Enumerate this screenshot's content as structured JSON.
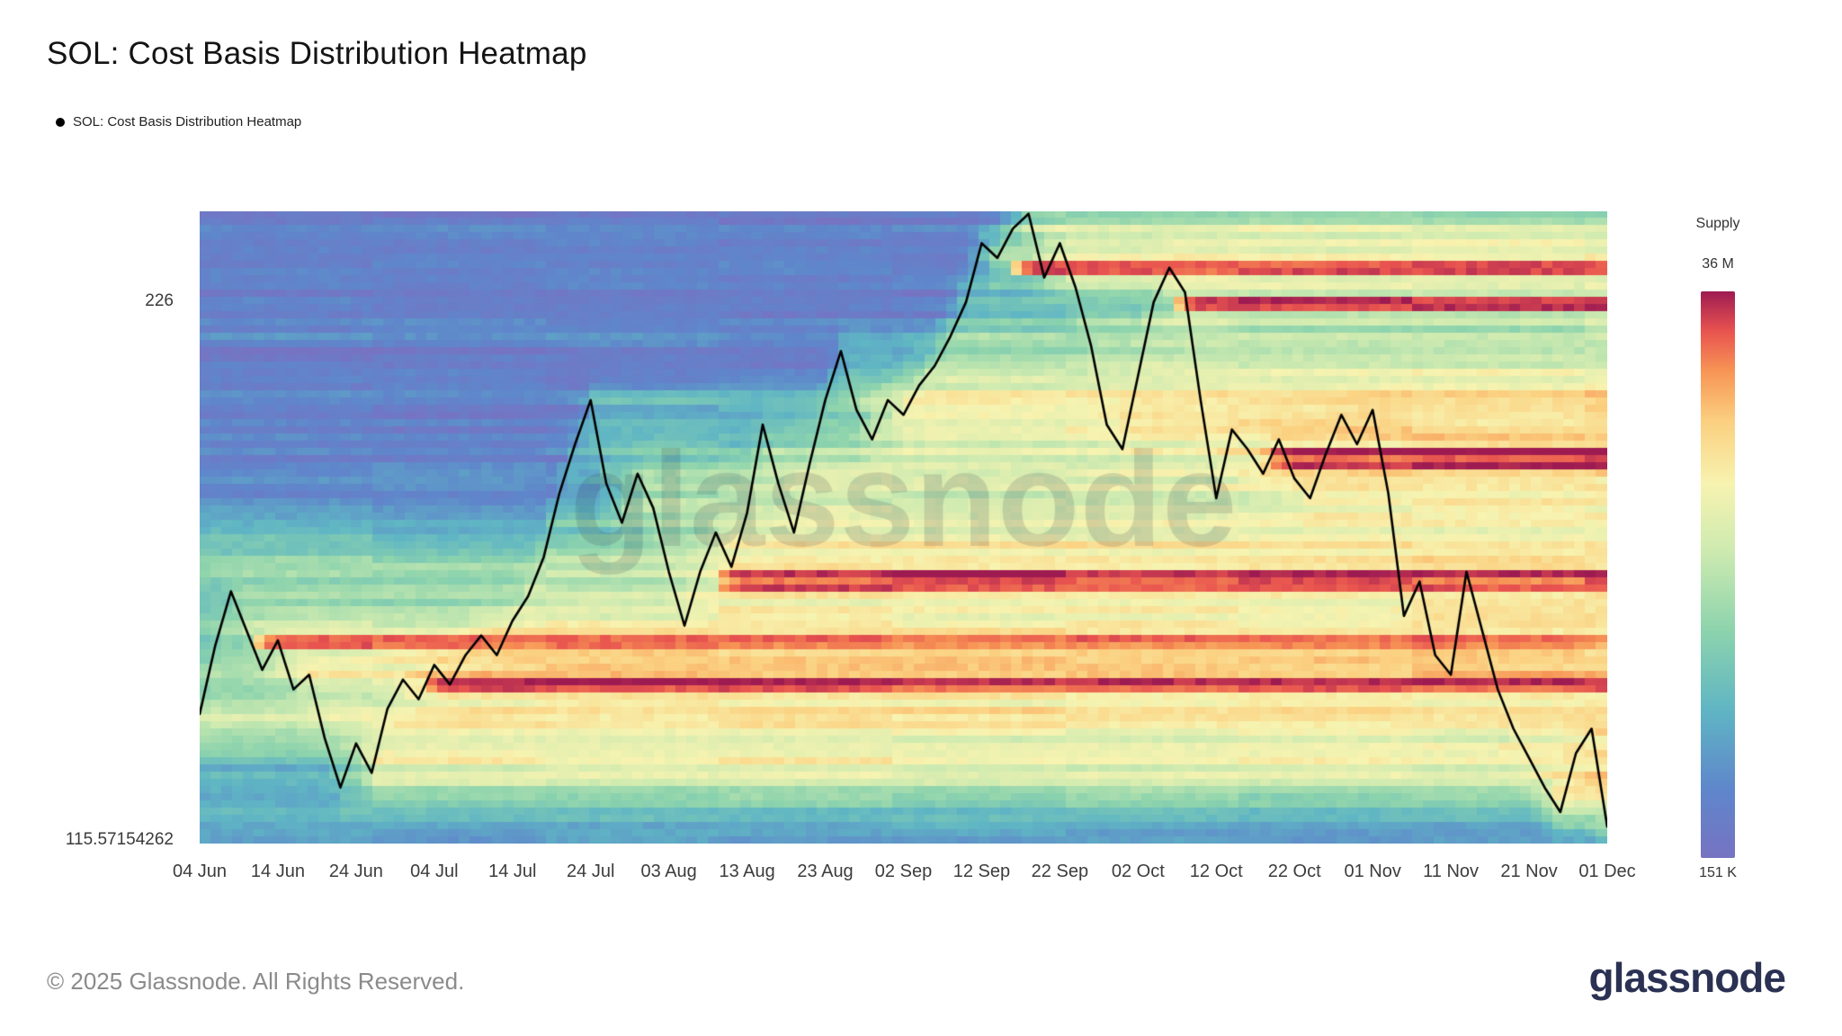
{
  "page": {
    "title": "SOL: Cost Basis Distribution Heatmap",
    "legend": "SOL: Cost Basis Distribution Heatmap",
    "watermark": "glassnode",
    "footer_copyright": "© 2025 Glassnode. All Rights Reserved.",
    "brand": "glassnode"
  },
  "colorbar": {
    "title": "Supply",
    "max_label": "36 M",
    "min_label": "151 K"
  },
  "chart_data": {
    "type": "heatmap",
    "title": "SOL: Cost Basis Distribution Heatmap",
    "x_ticks": [
      "04 Jun",
      "14 Jun",
      "24 Jun",
      "04 Jul",
      "14 Jul",
      "24 Jul",
      "03 Aug",
      "13 Aug",
      "23 Aug",
      "02 Sep",
      "12 Sep",
      "22 Sep",
      "02 Oct",
      "12 Oct",
      "22 Oct",
      "01 Nov",
      "11 Nov",
      "21 Nov",
      "01 Dec"
    ],
    "x_tick_days": [
      0,
      10,
      20,
      30,
      40,
      50,
      60,
      70,
      80,
      90,
      100,
      110,
      120,
      130,
      140,
      150,
      160,
      170,
      180
    ],
    "total_days": 180,
    "y_axis": {
      "top_label": "226",
      "bottom_label": "115.57154262",
      "min": 115.57,
      "max": 244.5
    },
    "supply_scale": {
      "min_label": "151 K",
      "max_label": "36 M"
    },
    "legend_position": "top-left",
    "grid": false,
    "price_line": {
      "name": "SOL price",
      "start_date": "04 Jun",
      "step_days": 2,
      "values": [
        142,
        156,
        167,
        159,
        151,
        157,
        147,
        150,
        137,
        127,
        136,
        130,
        143,
        149,
        145,
        152,
        148,
        154,
        158,
        154,
        161,
        166,
        174,
        187,
        197,
        206,
        189,
        181,
        191,
        184,
        171,
        160,
        171,
        179,
        172,
        183,
        201,
        189,
        179,
        193,
        206,
        216,
        204,
        198,
        206,
        203,
        209,
        213,
        219,
        226,
        238,
        235,
        241,
        244,
        231,
        238,
        229,
        217,
        201,
        196,
        211,
        226,
        233,
        228,
        206,
        186,
        200,
        196,
        191,
        198,
        190,
        186,
        195,
        203,
        197,
        204,
        187,
        162,
        169,
        154,
        150,
        171,
        159,
        147,
        139,
        133,
        127,
        122,
        134,
        139,
        119
      ]
    },
    "colormap": [
      [
        0.0,
        "#7673c2"
      ],
      [
        0.12,
        "#5f86cb"
      ],
      [
        0.26,
        "#5fb5c4"
      ],
      [
        0.4,
        "#8cd3ad"
      ],
      [
        0.54,
        "#cdeab0"
      ],
      [
        0.66,
        "#f7f3b0"
      ],
      [
        0.77,
        "#fbd080"
      ],
      [
        0.86,
        "#f79455"
      ],
      [
        0.93,
        "#e8534f"
      ],
      [
        1.0,
        "#9e1b52"
      ]
    ],
    "hot_spots": [
      {
        "day": 8,
        "price": 157
      },
      {
        "day": 31,
        "price": 148
      },
      {
        "day": 68,
        "price": 169
      },
      {
        "day": 106,
        "price": 233
      },
      {
        "day": 127,
        "price": 226
      },
      {
        "day": 139,
        "price": 194
      }
    ],
    "render": {
      "rows": 88,
      "cols": 130,
      "seed": 1337,
      "sigma": 4.0
    }
  }
}
